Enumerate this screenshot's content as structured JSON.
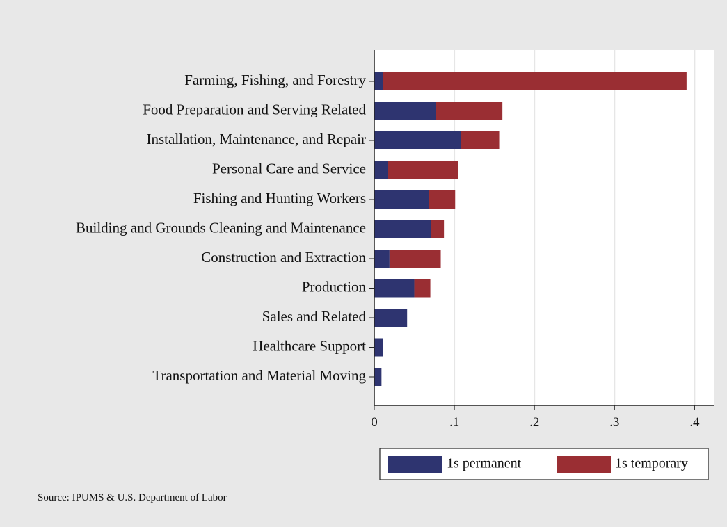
{
  "chart_data": {
    "type": "stacked_bar_horizontal",
    "categories": [
      "Farming, Fishing, and Forestry",
      "Food Preparation and Serving Related",
      "Installation, Maintenance, and Repair",
      "Personal Care and Service",
      "Fishing and Hunting Workers",
      "Building and Grounds Cleaning and Maintenance",
      "Construction and Extraction",
      "Production",
      "Sales and Related",
      "Healthcare Support",
      "Transportation and Material Moving"
    ],
    "series": [
      {
        "name": "1s permanent",
        "color": "#2e3470",
        "values": [
          0.011,
          0.0765,
          0.108,
          0.017,
          0.068,
          0.071,
          0.019,
          0.05,
          0.041,
          0.011,
          0.009
        ]
      },
      {
        "name": "1s temporary",
        "color": "#9a2e33",
        "values": [
          0.379,
          0.0835,
          0.048,
          0.088,
          0.033,
          0.016,
          0.064,
          0.02,
          0,
          0,
          0
        ]
      }
    ],
    "xlim": [
      0,
      0.424
    ],
    "xticks": [
      0,
      {
        "value": 0.1,
        "label": ".1"
      },
      {
        "value": 0.2,
        "label": ".2"
      },
      {
        "value": 0.3,
        "label": ".3"
      },
      {
        "value": 0.4,
        "label": ".4"
      }
    ],
    "grid": true,
    "legend": "bottom",
    "source": "Source: IPUMS & U.S. Department of Labor"
  }
}
